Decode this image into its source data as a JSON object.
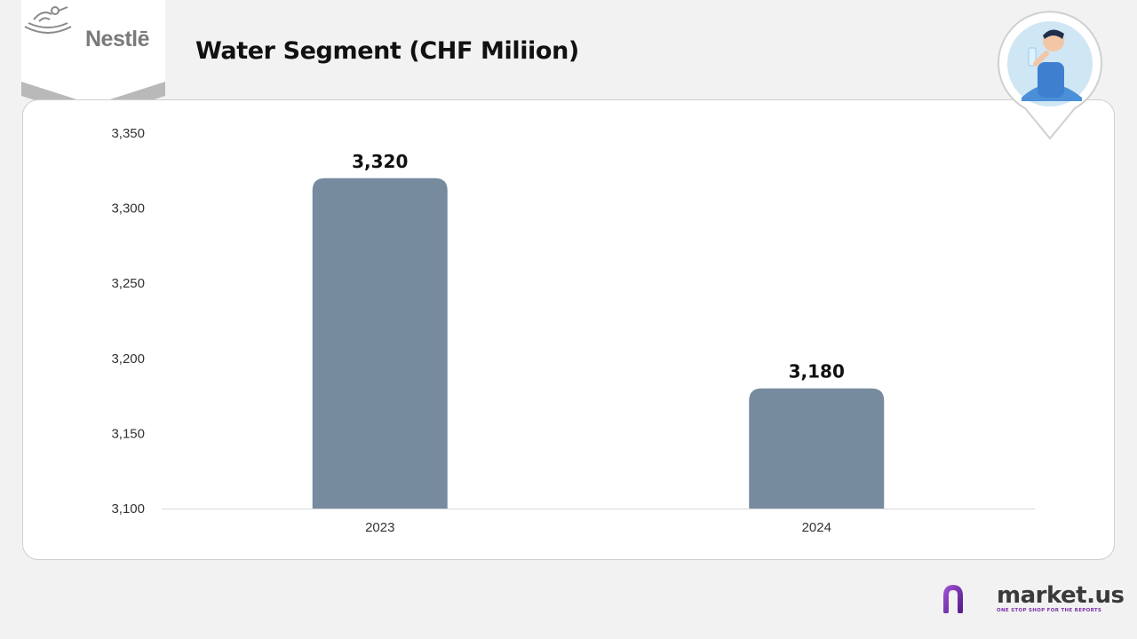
{
  "logo": {
    "text": "Nestlē"
  },
  "title": "Water Segment (CHF Miliion)",
  "brand": {
    "name": "market.us",
    "tagline": "ONE STOP SHOP FOR THE REPORTS",
    "accent": "#7b2fa8"
  },
  "colors": {
    "bar": "#778b9f",
    "background": "#f2f2f2",
    "card": "#ffffff"
  },
  "chart_data": {
    "type": "bar",
    "categories": [
      "2023",
      "2024"
    ],
    "values": [
      3320,
      3180
    ],
    "value_labels": [
      "3,320",
      "3,180"
    ],
    "title": "Water Segment (CHF Miliion)",
    "xlabel": "",
    "ylabel": "",
    "ylim": [
      3100,
      3350
    ],
    "yticks": [
      3100,
      3150,
      3200,
      3250,
      3300,
      3350
    ],
    "ytick_labels": [
      "3,100",
      "3,150",
      "3,200",
      "3,250",
      "3,300",
      "3,350"
    ],
    "grid": false,
    "legend": "none"
  }
}
